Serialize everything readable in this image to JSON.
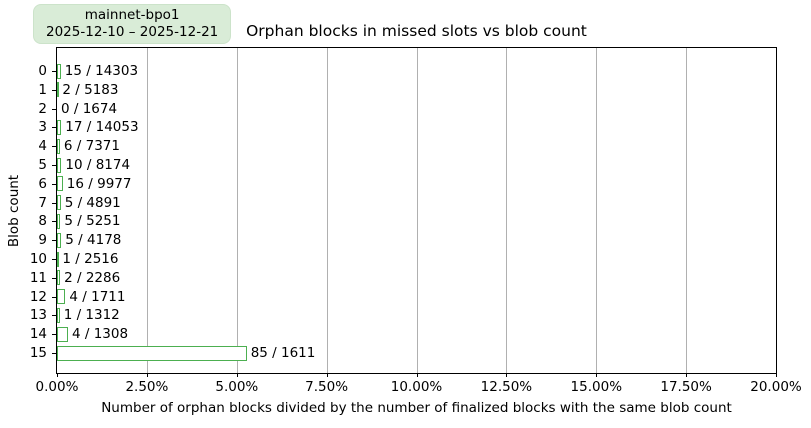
{
  "badge": {
    "line1": "mainnet-bpo1",
    "line2": "2025-12-10 – 2025-12-21"
  },
  "chart_data": {
    "type": "bar",
    "orientation": "horizontal",
    "title": "Orphan blocks in missed slots vs blob count",
    "xlabel": "Number of orphan blocks divided by the number of finalized blocks with the same blob count",
    "ylabel": "Blob count",
    "categories": [
      0,
      1,
      2,
      3,
      4,
      5,
      6,
      7,
      8,
      9,
      10,
      11,
      12,
      13,
      14,
      15
    ],
    "orphan_counts": [
      15,
      2,
      0,
      17,
      6,
      10,
      16,
      5,
      5,
      5,
      1,
      2,
      4,
      1,
      4,
      85
    ],
    "finalized_counts": [
      14303,
      5183,
      1674,
      14053,
      7371,
      8174,
      9977,
      4891,
      5251,
      4178,
      2516,
      2286,
      1711,
      1312,
      1308,
      1611
    ],
    "bar_labels": [
      "15 / 14303",
      "2 / 5183",
      "0 / 1674",
      "17 / 14053",
      "6 / 7371",
      "10 / 8174",
      "16 / 9977",
      "5 / 4891",
      "5 / 5251",
      "5 / 4178",
      "1 / 2516",
      "2 / 2286",
      "4 / 1711",
      "1 / 1312",
      "4 / 1308",
      "85 / 1611"
    ],
    "values_pct": [
      0.105,
      0.039,
      0.0,
      0.121,
      0.081,
      0.122,
      0.16,
      0.102,
      0.095,
      0.12,
      0.04,
      0.087,
      0.234,
      0.076,
      0.306,
      5.276
    ],
    "xlim": [
      0,
      20
    ],
    "x_ticks": [
      "0.00%",
      "2.50%",
      "5.00%",
      "7.50%",
      "10.00%",
      "12.50%",
      "15.00%",
      "17.50%",
      "20.00%"
    ],
    "grid": true,
    "legend": "none",
    "colors": {
      "bar_edge": "#4caf50",
      "bar_fill": "#ffffff",
      "grid": "#b0b0b0",
      "axis": "#000000",
      "badge_bg": "#d9ecd7"
    }
  }
}
